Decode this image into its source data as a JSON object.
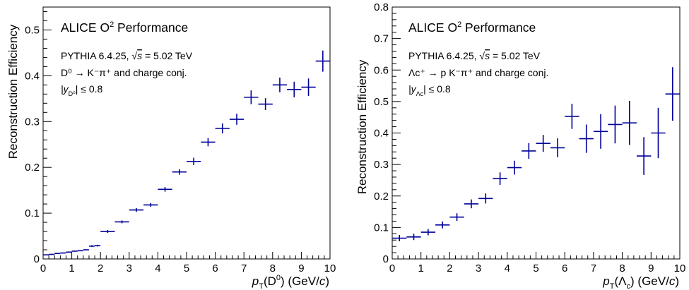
{
  "chart_data": [
    {
      "type": "scatter",
      "id": "d0",
      "x": [
        0.1,
        0.3,
        0.5,
        0.7,
        0.9,
        1.1,
        1.3,
        1.5,
        1.7,
        1.9,
        2.25,
        2.75,
        3.25,
        3.75,
        4.25,
        4.75,
        5.25,
        5.75,
        6.25,
        6.75,
        7.25,
        7.75,
        8.25,
        8.75,
        9.25,
        9.75
      ],
      "x_err": [
        0.1,
        0.1,
        0.1,
        0.1,
        0.1,
        0.1,
        0.1,
        0.1,
        0.1,
        0.1,
        0.25,
        0.25,
        0.25,
        0.25,
        0.25,
        0.25,
        0.25,
        0.25,
        0.25,
        0.25,
        0.25,
        0.25,
        0.25,
        0.25,
        0.25,
        0.25
      ],
      "y": [
        0.009,
        0.01,
        0.012,
        0.013,
        0.015,
        0.017,
        0.018,
        0.02,
        0.028,
        0.029,
        0.06,
        0.081,
        0.107,
        0.118,
        0.152,
        0.19,
        0.213,
        0.255,
        0.285,
        0.305,
        0.353,
        0.338,
        0.38,
        0.37,
        0.375,
        0.432
      ],
      "y_err": [
        0.001,
        0.001,
        0.001,
        0.001,
        0.001,
        0.001,
        0.001,
        0.001,
        0.002,
        0.002,
        0.003,
        0.003,
        0.004,
        0.004,
        0.005,
        0.006,
        0.008,
        0.009,
        0.011,
        0.012,
        0.015,
        0.013,
        0.016,
        0.017,
        0.019,
        0.023
      ],
      "xlim": [
        0,
        10
      ],
      "ylim": [
        0,
        0.55
      ],
      "xticks": [
        0,
        1,
        2,
        3,
        4,
        5,
        6,
        7,
        8,
        9,
        10
      ],
      "yticks": [
        0,
        0.1,
        0.2,
        0.3,
        0.4,
        0.5
      ],
      "ytick_labels": [
        "0",
        "0.1",
        "0.2",
        "0.3",
        "0.4",
        "0.5"
      ],
      "ylabel": "Reconstruction Efficiency",
      "xlabel": {
        "p": "p",
        "sub": "T",
        "rest": "(D",
        "sup": "0",
        "tail": ") (GeV/",
        "c": "c",
        "close": ")"
      },
      "annotations": {
        "title_a": "ALICE O",
        "title_sup": "2",
        "title_b": " Performance",
        "gen": "PYTHIA 6.4.25, ",
        "sqrt": "√",
        "s": "s",
        "energy": " = 5.02 TeV",
        "decay": "D⁰ → K⁻π⁺  and charge conj.",
        "rapidity_a": "|y",
        "rapidity_sub": "D⁰",
        "rapidity_b": "| ≤ 0.8"
      },
      "color": "#000099"
    },
    {
      "type": "scatter",
      "id": "lc",
      "x": [
        0.25,
        0.75,
        1.25,
        1.75,
        2.25,
        2.75,
        3.25,
        3.75,
        4.25,
        4.75,
        5.25,
        5.75,
        6.25,
        6.75,
        7.25,
        7.75,
        8.25,
        8.75,
        9.25,
        9.75
      ],
      "x_err": [
        0.25,
        0.25,
        0.25,
        0.25,
        0.25,
        0.25,
        0.25,
        0.25,
        0.25,
        0.25,
        0.25,
        0.25,
        0.25,
        0.25,
        0.25,
        0.25,
        0.25,
        0.25,
        0.25,
        0.25
      ],
      "y": [
        0.066,
        0.07,
        0.085,
        0.108,
        0.133,
        0.175,
        0.192,
        0.255,
        0.29,
        0.343,
        0.367,
        0.353,
        0.453,
        0.382,
        0.405,
        0.427,
        0.432,
        0.327,
        0.4,
        0.524
      ],
      "y_err": [
        0.01,
        0.01,
        0.01,
        0.011,
        0.012,
        0.014,
        0.016,
        0.02,
        0.022,
        0.025,
        0.027,
        0.03,
        0.04,
        0.045,
        0.055,
        0.06,
        0.07,
        0.06,
        0.08,
        0.085
      ],
      "xlim": [
        0,
        10
      ],
      "ylim": [
        0,
        0.8
      ],
      "xticks": [
        0,
        1,
        2,
        3,
        4,
        5,
        6,
        7,
        8,
        9,
        10
      ],
      "yticks": [
        0,
        0.1,
        0.2,
        0.3,
        0.4,
        0.5,
        0.6,
        0.7,
        0.8
      ],
      "ytick_labels": [
        "0",
        "0.1",
        "0.2",
        "0.3",
        "0.4",
        "0.5",
        "0.6",
        "0.7",
        "0.8"
      ],
      "ylabel": "Reconstruction Efficiency",
      "xlabel": {
        "p": "p",
        "sub": "T",
        "rest": "(Λ",
        "sup": "c",
        "tail": ") (GeV/",
        "c": "c",
        "close": ")"
      },
      "annotations": {
        "title_a": "ALICE O",
        "title_sup": "2",
        "title_b": " Performance",
        "gen": "PYTHIA 6.4.25, ",
        "sqrt": "√",
        "s": "s",
        "energy": " = 5.02 TeV",
        "decay": "Λc⁺ → p K⁻π⁺  and charge conj.",
        "rapidity_a": "|y",
        "rapidity_sub": "Λc",
        "rapidity_b": "| ≤ 0.8"
      },
      "color": "#000099"
    }
  ]
}
